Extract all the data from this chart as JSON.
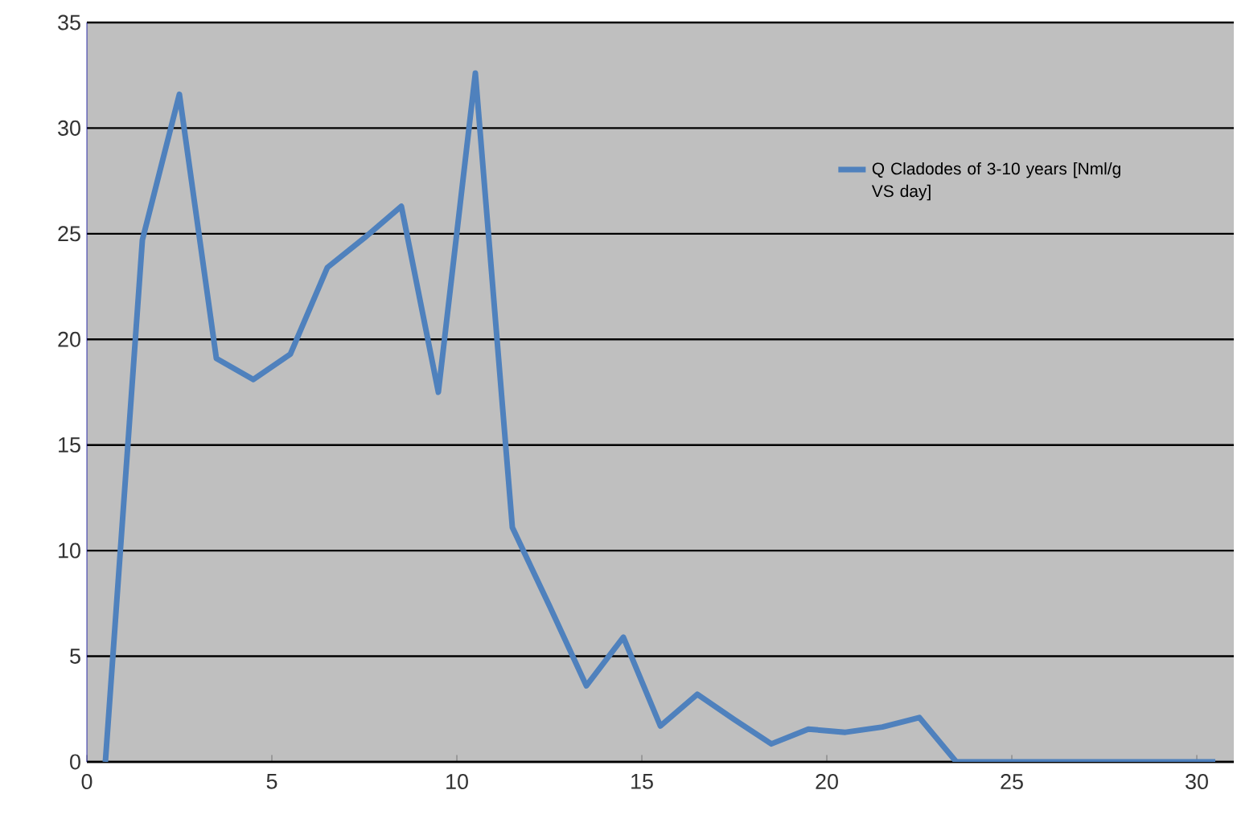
{
  "chart_data": {
    "type": "line",
    "x": [
      0.5,
      1.5,
      2.5,
      3.5,
      4.5,
      5.5,
      6.5,
      7.5,
      8.5,
      9.5,
      10.5,
      11.5,
      12.5,
      13.5,
      14.5,
      15.5,
      16.5,
      17.5,
      18.5,
      19.5,
      20.5,
      21.5,
      22.5,
      23.5,
      24.5,
      25.5,
      26.5,
      27.5,
      28.5,
      29.5,
      30.5
    ],
    "series": [
      {
        "name": "Q Cladodes of 3-10 years [Nml/g VS day]",
        "color": "#4f81bd",
        "values": [
          0,
          24.7,
          31.6,
          19.1,
          18.1,
          19.3,
          23.4,
          24.8,
          26.3,
          17.5,
          32.6,
          11.1,
          7.4,
          3.6,
          5.9,
          1.7,
          3.2,
          2.0,
          0.85,
          1.55,
          1.4,
          1.65,
          2.1,
          0,
          0,
          0,
          0,
          0,
          0,
          0,
          0
        ]
      }
    ],
    "xlim": [
      0,
      31
    ],
    "xticks": [
      0,
      5,
      10,
      15,
      20,
      25,
      30
    ],
    "ylim": [
      0,
      35
    ],
    "yticks": [
      0,
      5,
      10,
      15,
      20,
      25,
      30,
      35
    ],
    "grid": "y",
    "legend": "top right",
    "marker": "none",
    "line_style": "solid"
  }
}
